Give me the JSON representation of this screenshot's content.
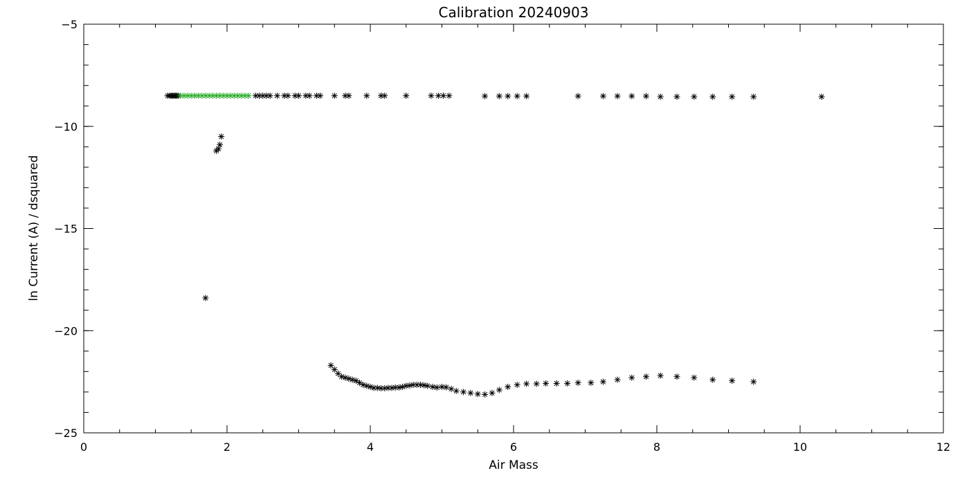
{
  "chart_data": {
    "type": "scatter",
    "title": "Calibration 20240903",
    "xlabel": "Air Mass",
    "ylabel": "ln Current (A) / dsquared",
    "xlim": [
      0,
      12
    ],
    "ylim": [
      -25,
      -5
    ],
    "x_ticks": [
      0,
      2,
      4,
      6,
      8,
      10,
      12
    ],
    "y_ticks": [
      -25,
      -20,
      -15,
      -10,
      -5
    ],
    "x_minor_step": 0.5,
    "y_minor_step": 1,
    "grid": false,
    "marker": "asterisk",
    "series": [
      {
        "color": "#000000",
        "points": [
          [
            1.17,
            -8.5
          ],
          [
            1.2,
            -8.5
          ],
          [
            1.22,
            -8.5
          ],
          [
            1.24,
            -8.5
          ],
          [
            1.26,
            -8.5
          ],
          [
            1.28,
            -8.5
          ],
          [
            1.3,
            -8.5
          ],
          [
            1.32,
            -8.5
          ],
          [
            2.4,
            -8.5
          ],
          [
            2.45,
            -8.5
          ],
          [
            2.5,
            -8.5
          ],
          [
            2.55,
            -8.5
          ],
          [
            2.6,
            -8.5
          ],
          [
            2.7,
            -8.5
          ],
          [
            2.8,
            -8.5
          ],
          [
            2.85,
            -8.5
          ],
          [
            2.95,
            -8.5
          ],
          [
            3.0,
            -8.5
          ],
          [
            3.1,
            -8.5
          ],
          [
            3.15,
            -8.5
          ],
          [
            3.25,
            -8.5
          ],
          [
            3.3,
            -8.5
          ],
          [
            3.5,
            -8.5
          ],
          [
            3.65,
            -8.5
          ],
          [
            3.7,
            -8.5
          ],
          [
            3.95,
            -8.5
          ],
          [
            4.15,
            -8.5
          ],
          [
            4.2,
            -8.5
          ],
          [
            4.5,
            -8.5
          ],
          [
            4.85,
            -8.5
          ],
          [
            4.95,
            -8.5
          ],
          [
            5.02,
            -8.5
          ],
          [
            5.1,
            -8.5
          ],
          [
            5.6,
            -8.52
          ],
          [
            5.8,
            -8.52
          ],
          [
            5.92,
            -8.52
          ],
          [
            6.05,
            -8.52
          ],
          [
            6.18,
            -8.52
          ],
          [
            6.9,
            -8.52
          ],
          [
            7.25,
            -8.52
          ],
          [
            7.45,
            -8.52
          ],
          [
            7.65,
            -8.52
          ],
          [
            7.85,
            -8.52
          ],
          [
            8.05,
            -8.55
          ],
          [
            8.28,
            -8.55
          ],
          [
            8.52,
            -8.55
          ],
          [
            8.78,
            -8.55
          ],
          [
            9.05,
            -8.55
          ],
          [
            9.35,
            -8.55
          ],
          [
            10.3,
            -8.55
          ],
          [
            1.85,
            -11.2
          ],
          [
            1.88,
            -11.1
          ],
          [
            1.9,
            -10.9
          ],
          [
            1.92,
            -10.5
          ],
          [
            1.7,
            -18.4
          ],
          [
            3.45,
            -21.7
          ],
          [
            3.5,
            -21.9
          ],
          [
            3.55,
            -22.1
          ],
          [
            3.6,
            -22.25
          ],
          [
            3.65,
            -22.3
          ],
          [
            3.7,
            -22.35
          ],
          [
            3.75,
            -22.4
          ],
          [
            3.8,
            -22.45
          ],
          [
            3.85,
            -22.55
          ],
          [
            3.9,
            -22.65
          ],
          [
            3.95,
            -22.7
          ],
          [
            4.0,
            -22.75
          ],
          [
            4.05,
            -22.8
          ],
          [
            4.1,
            -22.8
          ],
          [
            4.15,
            -22.82
          ],
          [
            4.2,
            -22.82
          ],
          [
            4.25,
            -22.8
          ],
          [
            4.3,
            -22.8
          ],
          [
            4.35,
            -22.78
          ],
          [
            4.4,
            -22.78
          ],
          [
            4.45,
            -22.75
          ],
          [
            4.5,
            -22.7
          ],
          [
            4.55,
            -22.68
          ],
          [
            4.6,
            -22.65
          ],
          [
            4.65,
            -22.65
          ],
          [
            4.7,
            -22.65
          ],
          [
            4.75,
            -22.67
          ],
          [
            4.8,
            -22.7
          ],
          [
            4.87,
            -22.75
          ],
          [
            4.93,
            -22.78
          ],
          [
            5.0,
            -22.75
          ],
          [
            5.06,
            -22.77
          ],
          [
            5.13,
            -22.85
          ],
          [
            5.2,
            -22.95
          ],
          [
            5.3,
            -23.0
          ],
          [
            5.4,
            -23.05
          ],
          [
            5.5,
            -23.1
          ],
          [
            5.6,
            -23.12
          ],
          [
            5.7,
            -23.05
          ],
          [
            5.8,
            -22.9
          ],
          [
            5.92,
            -22.75
          ],
          [
            6.05,
            -22.65
          ],
          [
            6.18,
            -22.6
          ],
          [
            6.32,
            -22.6
          ],
          [
            6.45,
            -22.58
          ],
          [
            6.6,
            -22.58
          ],
          [
            6.75,
            -22.58
          ],
          [
            6.9,
            -22.55
          ],
          [
            7.08,
            -22.55
          ],
          [
            7.25,
            -22.5
          ],
          [
            7.45,
            -22.4
          ],
          [
            7.65,
            -22.3
          ],
          [
            7.85,
            -22.25
          ],
          [
            8.05,
            -22.2
          ],
          [
            8.28,
            -22.25
          ],
          [
            8.52,
            -22.3
          ],
          [
            8.78,
            -22.4
          ],
          [
            9.05,
            -22.45
          ],
          [
            9.35,
            -22.5
          ]
        ]
      },
      {
        "color": "#22aa22",
        "points": [
          [
            1.35,
            -8.5
          ],
          [
            1.4,
            -8.5
          ],
          [
            1.45,
            -8.5
          ],
          [
            1.5,
            -8.5
          ],
          [
            1.55,
            -8.5
          ],
          [
            1.6,
            -8.5
          ],
          [
            1.65,
            -8.5
          ],
          [
            1.7,
            -8.5
          ],
          [
            1.75,
            -8.5
          ],
          [
            1.8,
            -8.5
          ],
          [
            1.85,
            -8.5
          ],
          [
            1.9,
            -8.5
          ],
          [
            1.95,
            -8.5
          ],
          [
            2.0,
            -8.5
          ],
          [
            2.05,
            -8.5
          ],
          [
            2.1,
            -8.5
          ],
          [
            2.15,
            -8.5
          ],
          [
            2.2,
            -8.5
          ],
          [
            2.25,
            -8.5
          ],
          [
            2.3,
            -8.5
          ]
        ]
      }
    ]
  }
}
